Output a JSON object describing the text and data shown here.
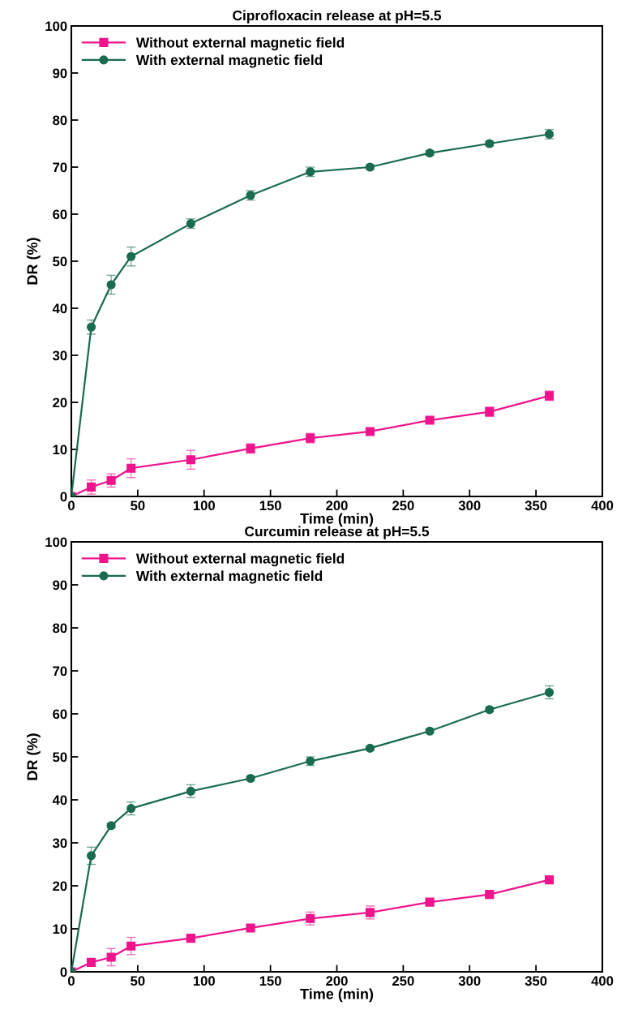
{
  "chart_data": [
    {
      "type": "line",
      "title": "Ciprofloxacin release at pH=5.5",
      "xlabel": "Time (min)",
      "ylabel": "DR (%)",
      "x": [
        0,
        15,
        30,
        45,
        90,
        135,
        180,
        225,
        270,
        315,
        360
      ],
      "series": [
        {
          "name": "Without external magnetic field",
          "color": "#f0148c",
          "marker": "square",
          "values": [
            0,
            2,
            3.4,
            6,
            7.8,
            10.2,
            12.4,
            13.8,
            16.2,
            18,
            21.4
          ],
          "errors": [
            0,
            1.5,
            1.4,
            2,
            2,
            1,
            1,
            0.5,
            0.5,
            1,
            1
          ]
        },
        {
          "name": "With external magnetic field",
          "color": "#1a6b50",
          "marker": "circle",
          "values": [
            0,
            36,
            45,
            51,
            58,
            64,
            69,
            70,
            73,
            75,
            77
          ],
          "errors": [
            0,
            1.5,
            2,
            2,
            1,
            1,
            1,
            0.5,
            0.5,
            0.5,
            1
          ]
        }
      ],
      "xlim": [
        0,
        400
      ],
      "xticks": [
        0,
        50,
        100,
        150,
        200,
        250,
        300,
        350,
        400
      ],
      "ylim": [
        0,
        100
      ],
      "yticks": [
        0,
        10,
        20,
        30,
        40,
        50,
        60,
        70,
        80,
        90,
        100
      ],
      "legend": "top left",
      "grid": false,
      "line_style": "solid"
    },
    {
      "type": "line",
      "title": "Curcumin release at pH=5.5",
      "xlabel": "Time (min)",
      "ylabel": "DR (%)",
      "x": [
        0,
        15,
        30,
        45,
        90,
        135,
        180,
        225,
        270,
        315,
        360
      ],
      "series": [
        {
          "name": "Without external magnetic field",
          "color": "#f0148c",
          "marker": "square",
          "values": [
            0,
            2.2,
            3.4,
            6,
            7.8,
            10.2,
            12.4,
            13.8,
            16.2,
            18,
            21.4
          ],
          "errors": [
            0,
            0.5,
            2,
            2,
            0.5,
            0.5,
            1.5,
            1.5,
            0.5,
            0.5,
            0.5
          ]
        },
        {
          "name": "With external magnetic field",
          "color": "#1a6b50",
          "marker": "circle",
          "values": [
            0,
            27,
            34,
            38,
            42,
            45,
            49,
            52,
            56,
            61,
            65
          ],
          "errors": [
            0,
            2,
            0.5,
            1.5,
            1.5,
            0.5,
            1,
            0.5,
            0.5,
            0.5,
            1.5
          ]
        }
      ],
      "xlim": [
        0,
        400
      ],
      "xticks": [
        0,
        50,
        100,
        150,
        200,
        250,
        300,
        350,
        400
      ],
      "ylim": [
        0,
        100
      ],
      "yticks": [
        0,
        10,
        20,
        30,
        40,
        50,
        60,
        70,
        80,
        90,
        100
      ],
      "legend": "top left",
      "grid": false,
      "line_style": "solid"
    }
  ]
}
